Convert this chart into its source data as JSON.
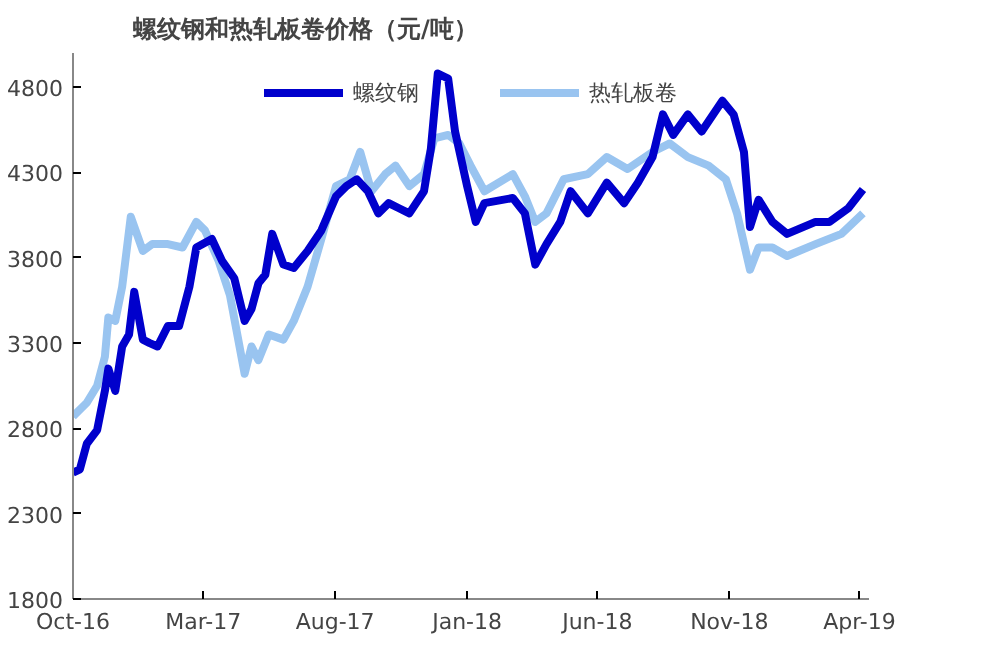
{
  "chart_data": {
    "type": "line",
    "title": "螺纹钢和热轧板卷价格（元/吨）",
    "legend": "top",
    "grid": false,
    "xlim": [
      "2016-10-01",
      "2019-04-12"
    ],
    "xticks": [
      {
        "value": "2016-10-01",
        "label": "Oct-16"
      },
      {
        "value": "2017-03-01",
        "label": "Mar-17"
      },
      {
        "value": "2017-08-01",
        "label": "Aug-17"
      },
      {
        "value": "2018-01-01",
        "label": "Jan-18"
      },
      {
        "value": "2018-06-01",
        "label": "Jun-18"
      },
      {
        "value": "2018-11-01",
        "label": "Nov-18"
      },
      {
        "value": "2019-04-01",
        "label": "Apr-19"
      }
    ],
    "ylim": [
      1800,
      5000
    ],
    "yticks": [
      1800,
      2300,
      2800,
      3300,
      3800,
      4300,
      4800
    ],
    "series": [
      {
        "name": "螺纹钢",
        "color": "#0000cc",
        "x": [
          "2016-10-01",
          "2016-10-09",
          "2016-10-17",
          "2016-10-29",
          "2016-11-07",
          "2016-11-11",
          "2016-11-19",
          "2016-11-27",
          "2016-12-05",
          "2016-12-11",
          "2016-12-21",
          "2016-12-29",
          "2017-01-07",
          "2017-01-19",
          "2017-02-01",
          "2017-02-13",
          "2017-02-21",
          "2017-03-11",
          "2017-03-23",
          "2017-04-06",
          "2017-04-18",
          "2017-04-26",
          "2017-05-04",
          "2017-05-12",
          "2017-05-20",
          "2017-06-02",
          "2017-06-14",
          "2017-06-30",
          "2017-07-16",
          "2017-08-02",
          "2017-08-14",
          "2017-08-26",
          "2017-09-08",
          "2017-09-20",
          "2017-10-02",
          "2017-10-14",
          "2017-10-26",
          "2017-11-12",
          "2017-11-20",
          "2017-11-28",
          "2017-12-10",
          "2017-12-18",
          "2018-01-01",
          "2018-01-11",
          "2018-01-21",
          "2018-02-23",
          "2018-03-09",
          "2018-03-21",
          "2018-04-03",
          "2018-04-19",
          "2018-05-01",
          "2018-05-21",
          "2018-06-12",
          "2018-07-02",
          "2018-07-18",
          "2018-08-04",
          "2018-08-16",
          "2018-08-28",
          "2018-09-14",
          "2018-09-30",
          "2018-10-24",
          "2018-11-06",
          "2018-11-18",
          "2018-11-25",
          "2018-12-05",
          "2018-12-21",
          "2019-01-07",
          "2019-02-09",
          "2019-02-25",
          "2019-03-19",
          "2019-04-05"
        ],
        "values": [
          2540,
          2560,
          2710,
          2790,
          3020,
          3150,
          3020,
          3280,
          3350,
          3600,
          3320,
          3300,
          3280,
          3400,
          3400,
          3630,
          3860,
          3910,
          3780,
          3680,
          3430,
          3500,
          3650,
          3700,
          3940,
          3760,
          3740,
          3840,
          3960,
          4160,
          4220,
          4260,
          4190,
          4060,
          4120,
          4090,
          4060,
          4190,
          4440,
          4880,
          4850,
          4540,
          4220,
          4010,
          4120,
          4150,
          4060,
          3760,
          3880,
          4010,
          4190,
          4060,
          4240,
          4120,
          4240,
          4390,
          4640,
          4520,
          4640,
          4540,
          4720,
          4640,
          4420,
          3980,
          4140,
          4010,
          3940,
          4010,
          4010,
          4090,
          4200
        ]
      },
      {
        "name": "热轧板卷",
        "color": "#99c4f0",
        "x": [
          "2016-10-01",
          "2016-10-17",
          "2016-10-29",
          "2016-11-07",
          "2016-11-11",
          "2016-11-19",
          "2016-11-27",
          "2016-12-07",
          "2016-12-21",
          "2017-01-01",
          "2017-01-19",
          "2017-02-05",
          "2017-02-21",
          "2017-03-03",
          "2017-03-19",
          "2017-04-01",
          "2017-04-18",
          "2017-04-26",
          "2017-05-04",
          "2017-05-16",
          "2017-06-02",
          "2017-06-14",
          "2017-06-30",
          "2017-07-16",
          "2017-08-02",
          "2017-08-18",
          "2017-08-30",
          "2017-09-12",
          "2017-09-28",
          "2017-10-10",
          "2017-10-26",
          "2017-11-12",
          "2017-11-24",
          "2017-12-10",
          "2017-12-23",
          "2018-01-05",
          "2018-01-21",
          "2018-02-23",
          "2018-03-09",
          "2018-03-21",
          "2018-04-03",
          "2018-04-23",
          "2018-05-21",
          "2018-06-12",
          "2018-07-06",
          "2018-08-04",
          "2018-08-24",
          "2018-09-14",
          "2018-10-08",
          "2018-10-28",
          "2018-11-10",
          "2018-11-25",
          "2018-12-05",
          "2018-12-21",
          "2019-01-07",
          "2019-02-09",
          "2019-03-11",
          "2019-04-05"
        ],
        "values": [
          2870,
          2950,
          3050,
          3220,
          3450,
          3430,
          3630,
          4040,
          3840,
          3880,
          3880,
          3860,
          4010,
          3960,
          3780,
          3580,
          3120,
          3280,
          3200,
          3350,
          3320,
          3430,
          3630,
          3910,
          4220,
          4260,
          4420,
          4190,
          4290,
          4340,
          4220,
          4290,
          4500,
          4520,
          4470,
          4340,
          4190,
          4290,
          4160,
          4010,
          4060,
          4260,
          4290,
          4390,
          4320,
          4420,
          4470,
          4390,
          4340,
          4260,
          4060,
          3730,
          3860,
          3860,
          3810,
          3880,
          3940,
          4060
        ]
      }
    ]
  }
}
